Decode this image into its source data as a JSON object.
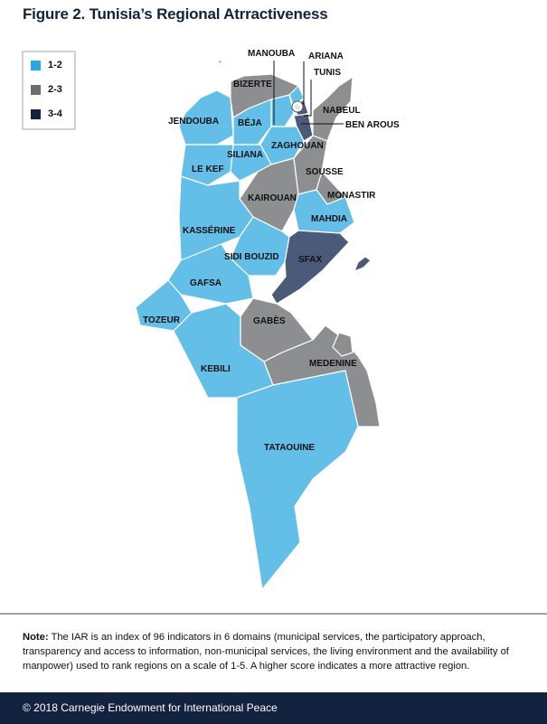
{
  "title": "Figure 2. Tunisia’s Regional Atrractiveness",
  "legend": [
    {
      "label": "1-2",
      "color": "#29a8e0"
    },
    {
      "label": "2-3",
      "color": "#6d6e70"
    },
    {
      "label": "3-4",
      "color": "#13223f"
    }
  ],
  "map_colors": {
    "1-2": "#63bee8",
    "2-3": "#8d8e90",
    "3-4": "#4b5a78"
  },
  "regions": [
    {
      "name": "JENDOUBA",
      "class": "1-2"
    },
    {
      "name": "BIZERTE",
      "class": "2-3"
    },
    {
      "name": "BÉJA",
      "class": "1-2"
    },
    {
      "name": "MANOUBA",
      "class": "1-2"
    },
    {
      "name": "ARIANA",
      "class": "1-2"
    },
    {
      "name": "TUNIS",
      "class": "3-4"
    },
    {
      "name": "BEN AROUS",
      "class": "3-4"
    },
    {
      "name": "NABEUL",
      "class": "2-3"
    },
    {
      "name": "ZAGHOUAN",
      "class": "1-2"
    },
    {
      "name": "SILIANA",
      "class": "1-2"
    },
    {
      "name": "LE KEF",
      "class": "1-2"
    },
    {
      "name": "KAIROUAN",
      "class": "2-3"
    },
    {
      "name": "SOUSSE",
      "class": "2-3"
    },
    {
      "name": "MONASTIR",
      "class": "2-3"
    },
    {
      "name": "MAHDIA",
      "class": "1-2"
    },
    {
      "name": "KASSÉRINE",
      "class": "1-2"
    },
    {
      "name": "SIDI BOUZID",
      "class": "1-2"
    },
    {
      "name": "SFAX",
      "class": "3-4"
    },
    {
      "name": "GAFSA",
      "class": "1-2"
    },
    {
      "name": "TOZEUR",
      "class": "1-2"
    },
    {
      "name": "GABÈS",
      "class": "2-3"
    },
    {
      "name": "KEBILI",
      "class": "1-2"
    },
    {
      "name": "MEDENINE",
      "class": "2-3"
    },
    {
      "name": "TATAOUINE",
      "class": "1-2"
    }
  ],
  "note_label": "Note:",
  "note_text": " The IAR is an index of 96 indicators in 6 domains (municipal services, the participatory approach, transparency and access to information, non-municipal services, the living environment and the availability of manpower) used to rank regions on a scale of 1-5.  A higher score indicates a more attractive region.",
  "footer": "© 2018 Carnegie Endowment for International Peace"
}
